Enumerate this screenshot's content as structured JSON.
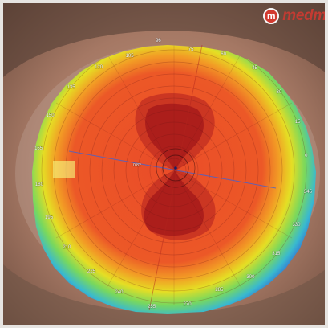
{
  "logo": {
    "mark": "m",
    "text": "medm"
  },
  "axis_labels": [
    "96",
    "75",
    "60",
    "45",
    "30",
    "15",
    "0",
    "345",
    "330",
    "315",
    "300",
    "285",
    "270",
    "255",
    "240",
    "225",
    "210",
    "195",
    "180",
    "165",
    "150",
    "135",
    "120",
    "105"
  ],
  "center_readout": "0.82",
  "colors": {
    "ring_blue": "#3048d8",
    "ring_cyan": "#39b9cf",
    "ring_green": "#79d85d",
    "ring_yellow": "#e5de24",
    "ring_orange": "#f29b25",
    "ring_red": "#ea4c28",
    "bowtie_dark_red": "#a91c1b"
  }
}
